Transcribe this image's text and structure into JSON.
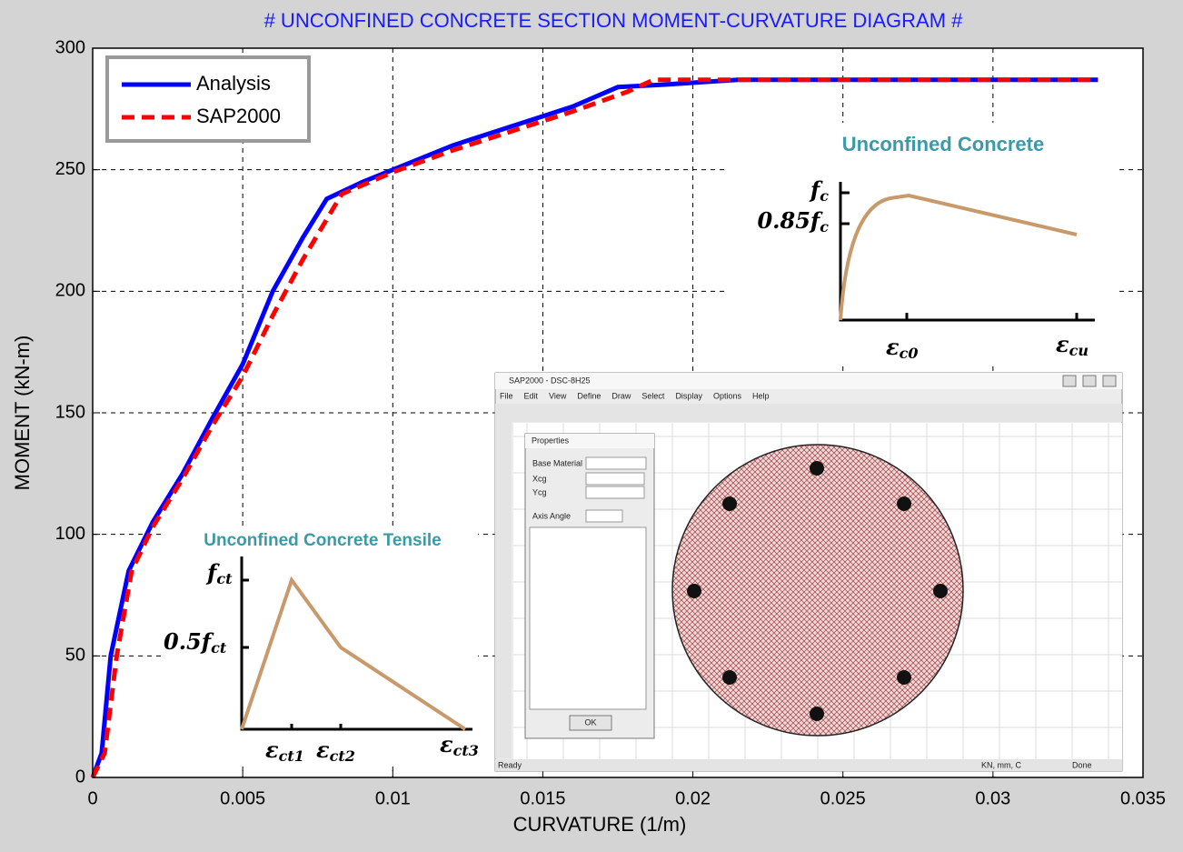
{
  "chart_data": {
    "type": "line",
    "title": "# UNCONFINED CONCRETE SECTION MOMENT-CURVATURE DIAGRAM #",
    "x_label": "CURVATURE (1/m)",
    "y_label": "MOMENT (kN-m)",
    "xlim": [
      0,
      0.035
    ],
    "ylim": [
      0,
      300
    ],
    "xticks": [
      0,
      0.005,
      0.01,
      0.015,
      0.02,
      0.025,
      0.03,
      0.035
    ],
    "yticks": [
      0,
      50,
      100,
      150,
      200,
      250,
      300
    ],
    "grid": true,
    "legend": "upper left",
    "series": [
      {
        "name": "Analysis",
        "color": "#0000ff",
        "dash": false,
        "x": [
          0,
          0.0003,
          0.0006,
          0.0012,
          0.002,
          0.003,
          0.004,
          0.005,
          0.006,
          0.007,
          0.0078,
          0.009,
          0.01,
          0.012,
          0.014,
          0.016,
          0.0175,
          0.019,
          0.0215,
          0.0335
        ],
        "values": [
          0,
          10,
          50,
          85,
          105,
          125,
          148,
          170,
          200,
          222,
          238,
          245,
          250,
          260,
          268,
          276,
          284,
          285,
          287,
          287
        ]
      },
      {
        "name": "SAP2000",
        "color": "#ff0000",
        "dash": true,
        "x": [
          0,
          0.0004,
          0.0008,
          0.0013,
          0.002,
          0.003,
          0.004,
          0.005,
          0.006,
          0.007,
          0.0083,
          0.01,
          0.012,
          0.014,
          0.016,
          0.0178,
          0.0187,
          0.0335
        ],
        "values": [
          0,
          10,
          50,
          85,
          103,
          123,
          145,
          165,
          190,
          213,
          240,
          249,
          258,
          266,
          274,
          282,
          287,
          287
        ]
      }
    ],
    "insets": {
      "compression": {
        "title": "Unconfined Concrete",
        "labels": [
          {
            "text": "f",
            "sub": "c"
          },
          {
            "text": "0.85f",
            "sub": "c"
          },
          {
            "text": "ε",
            "sub": "c0"
          },
          {
            "text": "ε",
            "sub": "cu"
          }
        ]
      },
      "tension": {
        "title": "Unconfined Concrete Tensile",
        "labels": [
          {
            "text": "f",
            "sub": "ct"
          },
          {
            "text": "0.5f",
            "sub": "ct"
          },
          {
            "text": "ε",
            "sub": "ct1"
          },
          {
            "text": "ε",
            "sub": "ct2"
          },
          {
            "text": "ε",
            "sub": "ct3"
          }
        ]
      },
      "sap": {
        "window_title": "SAP2000 - DSC-8H25",
        "menu": [
          "File",
          "Edit",
          "View",
          "Define",
          "Draw",
          "Select",
          "Display",
          "Options",
          "Help"
        ],
        "dialog_title": "Properties",
        "fields": [
          "Base Material",
          "Xcg",
          "Ycg",
          "Axis Angle"
        ],
        "ok": "OK",
        "status": "Ready",
        "done": "Done",
        "units": "KN, mm, C"
      }
    }
  }
}
